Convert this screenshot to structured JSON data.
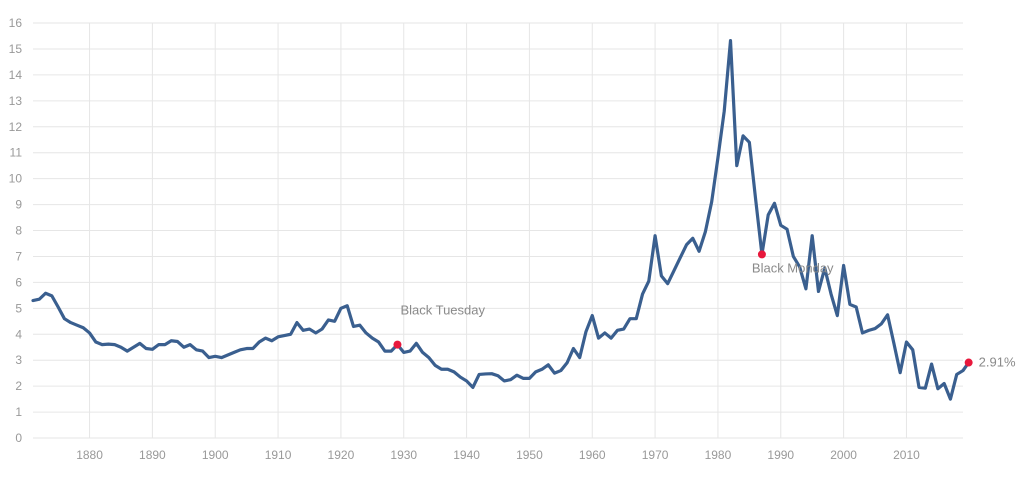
{
  "chart_data": {
    "type": "line",
    "title": "",
    "xlabel": "",
    "ylabel": "",
    "xlim": [
      1871,
      2019
    ],
    "ylim": [
      0,
      16
    ],
    "x_ticks": [
      1880,
      1890,
      1900,
      1910,
      1920,
      1930,
      1940,
      1950,
      1960,
      1970,
      1980,
      1990,
      2000,
      2010
    ],
    "y_ticks": [
      0,
      1,
      2,
      3,
      4,
      5,
      6,
      7,
      8,
      9,
      10,
      11,
      12,
      13,
      14,
      15,
      16
    ],
    "grid": true,
    "series": [
      {
        "color": "#3a5f8f",
        "points": [
          [
            1871,
            5.3
          ],
          [
            1872,
            5.35
          ],
          [
            1873,
            5.58
          ],
          [
            1874,
            5.48
          ],
          [
            1875,
            5.05
          ],
          [
            1876,
            4.6
          ],
          [
            1877,
            4.45
          ],
          [
            1878,
            4.35
          ],
          [
            1879,
            4.25
          ],
          [
            1880,
            4.05
          ],
          [
            1881,
            3.7
          ],
          [
            1882,
            3.6
          ],
          [
            1883,
            3.62
          ],
          [
            1884,
            3.6
          ],
          [
            1885,
            3.5
          ],
          [
            1886,
            3.35
          ],
          [
            1887,
            3.5
          ],
          [
            1888,
            3.65
          ],
          [
            1889,
            3.45
          ],
          [
            1890,
            3.42
          ],
          [
            1891,
            3.6
          ],
          [
            1892,
            3.6
          ],
          [
            1893,
            3.75
          ],
          [
            1894,
            3.72
          ],
          [
            1895,
            3.5
          ],
          [
            1896,
            3.6
          ],
          [
            1897,
            3.4
          ],
          [
            1898,
            3.35
          ],
          [
            1899,
            3.1
          ],
          [
            1900,
            3.15
          ],
          [
            1901,
            3.1
          ],
          [
            1902,
            3.2
          ],
          [
            1903,
            3.3
          ],
          [
            1904,
            3.4
          ],
          [
            1905,
            3.45
          ],
          [
            1906,
            3.45
          ],
          [
            1907,
            3.7
          ],
          [
            1908,
            3.85
          ],
          [
            1909,
            3.75
          ],
          [
            1910,
            3.9
          ],
          [
            1911,
            3.95
          ],
          [
            1912,
            4.0
          ],
          [
            1913,
            4.45
          ],
          [
            1914,
            4.15
          ],
          [
            1915,
            4.2
          ],
          [
            1916,
            4.05
          ],
          [
            1917,
            4.2
          ],
          [
            1918,
            4.55
          ],
          [
            1919,
            4.5
          ],
          [
            1920,
            5.0
          ],
          [
            1921,
            5.1
          ],
          [
            1922,
            4.3
          ],
          [
            1923,
            4.35
          ],
          [
            1924,
            4.05
          ],
          [
            1925,
            3.85
          ],
          [
            1926,
            3.7
          ],
          [
            1927,
            3.35
          ],
          [
            1928,
            3.35
          ],
          [
            1929,
            3.6
          ],
          [
            1930,
            3.3
          ],
          [
            1931,
            3.35
          ],
          [
            1932,
            3.65
          ],
          [
            1933,
            3.3
          ],
          [
            1934,
            3.1
          ],
          [
            1935,
            2.8
          ],
          [
            1936,
            2.65
          ],
          [
            1937,
            2.65
          ],
          [
            1938,
            2.55
          ],
          [
            1939,
            2.35
          ],
          [
            1940,
            2.2
          ],
          [
            1941,
            1.95
          ],
          [
            1942,
            2.45
          ],
          [
            1943,
            2.47
          ],
          [
            1944,
            2.48
          ],
          [
            1945,
            2.4
          ],
          [
            1946,
            2.2
          ],
          [
            1947,
            2.25
          ],
          [
            1948,
            2.42
          ],
          [
            1949,
            2.3
          ],
          [
            1950,
            2.3
          ],
          [
            1951,
            2.55
          ],
          [
            1952,
            2.65
          ],
          [
            1953,
            2.82
          ],
          [
            1954,
            2.5
          ],
          [
            1955,
            2.6
          ],
          [
            1956,
            2.9
          ],
          [
            1957,
            3.45
          ],
          [
            1958,
            3.1
          ],
          [
            1959,
            4.1
          ],
          [
            1960,
            4.72
          ],
          [
            1961,
            3.85
          ],
          [
            1962,
            4.05
          ],
          [
            1963,
            3.85
          ],
          [
            1964,
            4.15
          ],
          [
            1965,
            4.2
          ],
          [
            1966,
            4.6
          ],
          [
            1967,
            4.6
          ],
          [
            1968,
            5.55
          ],
          [
            1969,
            6.05
          ],
          [
            1970,
            7.8
          ],
          [
            1971,
            6.25
          ],
          [
            1972,
            5.95
          ],
          [
            1973,
            6.45
          ],
          [
            1974,
            6.95
          ],
          [
            1975,
            7.45
          ],
          [
            1976,
            7.7
          ],
          [
            1977,
            7.2
          ],
          [
            1978,
            7.95
          ],
          [
            1979,
            9.1
          ],
          [
            1980,
            10.8
          ],
          [
            1981,
            12.6
          ],
          [
            1982,
            15.32
          ],
          [
            1983,
            10.5
          ],
          [
            1984,
            11.65
          ],
          [
            1985,
            11.4
          ],
          [
            1986,
            9.2
          ],
          [
            1987,
            7.08
          ],
          [
            1988,
            8.6
          ],
          [
            1989,
            9.05
          ],
          [
            1990,
            8.2
          ],
          [
            1991,
            8.05
          ],
          [
            1992,
            7.0
          ],
          [
            1993,
            6.6
          ],
          [
            1994,
            5.75
          ],
          [
            1995,
            7.8
          ],
          [
            1996,
            5.65
          ],
          [
            1997,
            6.55
          ],
          [
            1998,
            5.55
          ],
          [
            1999,
            4.72
          ],
          [
            2000,
            6.65
          ],
          [
            2001,
            5.15
          ],
          [
            2002,
            5.05
          ],
          [
            2003,
            4.05
          ],
          [
            2004,
            4.15
          ],
          [
            2005,
            4.22
          ],
          [
            2006,
            4.4
          ],
          [
            2007,
            4.75
          ],
          [
            2008,
            3.65
          ],
          [
            2009,
            2.52
          ],
          [
            2010,
            3.7
          ],
          [
            2011,
            3.4
          ],
          [
            2012,
            1.95
          ],
          [
            2013,
            1.92
          ],
          [
            2014,
            2.85
          ],
          [
            2015,
            1.9
          ],
          [
            2016,
            2.1
          ],
          [
            2017,
            1.5
          ],
          [
            2018,
            2.45
          ],
          [
            2019,
            2.6
          ],
          [
            2019.9,
            2.91
          ]
        ]
      }
    ],
    "markers": [
      {
        "x": 1929,
        "y": 3.6,
        "label": "Black Tuesday",
        "label_anchor": "above"
      },
      {
        "x": 1987,
        "y": 7.08,
        "label": "Black Monday",
        "label_anchor": "above"
      },
      {
        "x": 2019.9,
        "y": 2.91,
        "label": "2.91%",
        "label_anchor": "right"
      }
    ],
    "marker_color": "#e8183c"
  }
}
